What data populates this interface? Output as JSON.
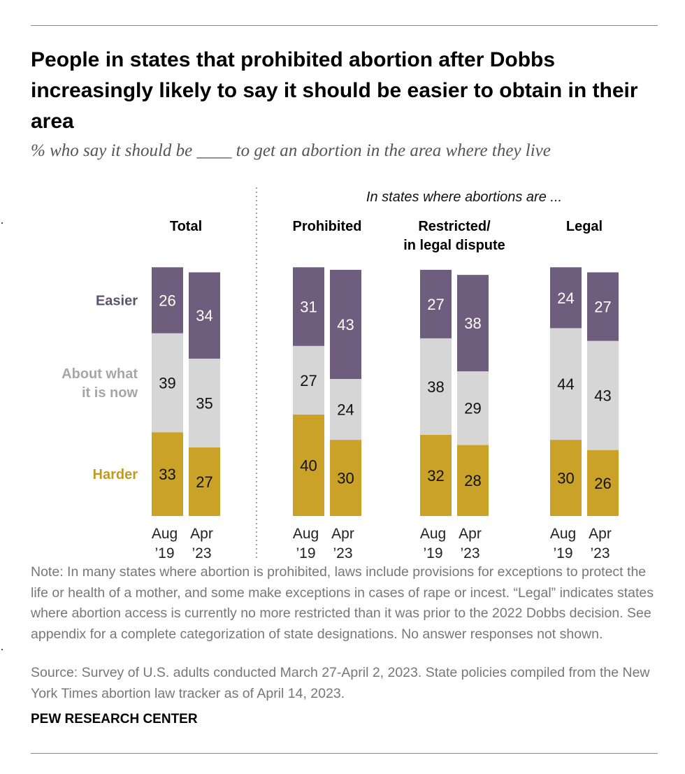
{
  "title": "People in states that prohibited abortion after Dobbs increasingly likely to say it should be easier to obtain in their area",
  "subtitle": "% who say it should be ____ to get an abortion in the area where they live",
  "note": "Note: In many states where abortion is prohibited, laws include provisions for exceptions to protect the life or health of a mother, and some make exceptions in cases of rape or incest. “Legal” indicates states where abortion access is currently no more restricted than it was prior to the 2022 Dobbs decision. See appendix for a complete categorization of state designations. No answer responses not shown.",
  "source": "Source: Survey of U.S. adults conducted March 27-April 2, 2023. State policies compiled from the New York Times abortion law tracker as of April 14, 2023.",
  "brand": "PEW RESEARCH CENTER",
  "colors": {
    "easier": "#6f5d7e",
    "same": "#d6d6d6",
    "harder": "#c9a227",
    "easier_label": "#5f5070",
    "same_label": "#a6a6a6",
    "harder_label": "#c29a1f"
  },
  "chart_data": {
    "type": "bar",
    "stacked": true,
    "header": "In states where abortions are ...",
    "groups": [
      {
        "name": "Total",
        "name_lines": [
          "Total"
        ]
      },
      {
        "name": "Prohibited",
        "name_lines": [
          "Prohibited"
        ]
      },
      {
        "name": "Restricted/ in legal dispute",
        "name_lines": [
          "Restricted/",
          "in legal dispute"
        ]
      },
      {
        "name": "Legal",
        "name_lines": [
          "Legal"
        ]
      }
    ],
    "periods": [
      {
        "line1": "Aug",
        "line2": "’19"
      },
      {
        "line1": "Apr",
        "line2": "’23"
      }
    ],
    "series": [
      {
        "name": "Easier",
        "label_lines": [
          "Easier"
        ],
        "color": "#6f5d7e",
        "values": [
          [
            26,
            34
          ],
          [
            31,
            43
          ],
          [
            27,
            38
          ],
          [
            24,
            27
          ]
        ]
      },
      {
        "name": "About what it is now",
        "label_lines": [
          "About what",
          "it is now"
        ],
        "color": "#d6d6d6",
        "values": [
          [
            39,
            35
          ],
          [
            27,
            24
          ],
          [
            38,
            29
          ],
          [
            44,
            43
          ]
        ]
      },
      {
        "name": "Harder",
        "label_lines": [
          "Harder"
        ],
        "color": "#c9a227",
        "values": [
          [
            33,
            27
          ],
          [
            40,
            30
          ],
          [
            32,
            28
          ],
          [
            30,
            26
          ]
        ]
      }
    ],
    "ylim": [
      0,
      100
    ]
  }
}
